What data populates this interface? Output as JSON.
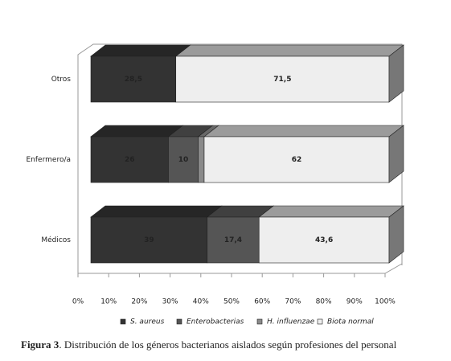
{
  "chart_data": {
    "type": "stacked-bar-3d",
    "categories": [
      "Otros",
      "Enfermero/a",
      "Médicos"
    ],
    "series": [
      {
        "name": "S. aureus",
        "color": "#333333",
        "values": [
          28.5,
          26,
          39
        ],
        "value_labels": [
          "28,5",
          "26",
          "39"
        ]
      },
      {
        "name": "Enterobacterias",
        "color": "#555555",
        "values": [
          null,
          10,
          17.4
        ],
        "value_labels": [
          null,
          "10",
          "17,4"
        ]
      },
      {
        "name": "H. influenzae",
        "color": "#8a8a8a",
        "values": [
          null,
          2,
          null
        ],
        "value_labels": [
          null,
          null,
          null
        ]
      },
      {
        "name": "Biota normal",
        "color": "#eeeeee",
        "values": [
          71.5,
          62,
          43.6
        ],
        "value_labels": [
          "71,5",
          "62",
          "43,6"
        ]
      }
    ],
    "xlim": [
      0,
      100
    ],
    "xticks": [
      {
        "value": 0,
        "label": "0%"
      },
      {
        "value": 10,
        "label": "10%"
      },
      {
        "value": 20,
        "label": "20%"
      },
      {
        "value": 30,
        "label": "30%"
      },
      {
        "value": 40,
        "label": "40%"
      },
      {
        "value": 50,
        "label": "50%"
      },
      {
        "value": 60,
        "label": "60%"
      },
      {
        "value": 70,
        "label": "70%"
      },
      {
        "value": 80,
        "label": "80%"
      },
      {
        "value": 90,
        "label": "90%"
      },
      {
        "value": 100,
        "label": "100%"
      }
    ],
    "caption_label": "Figura 3",
    "caption": ". Distribución de los géneros bacterianos aislados según profesiones del personal"
  }
}
